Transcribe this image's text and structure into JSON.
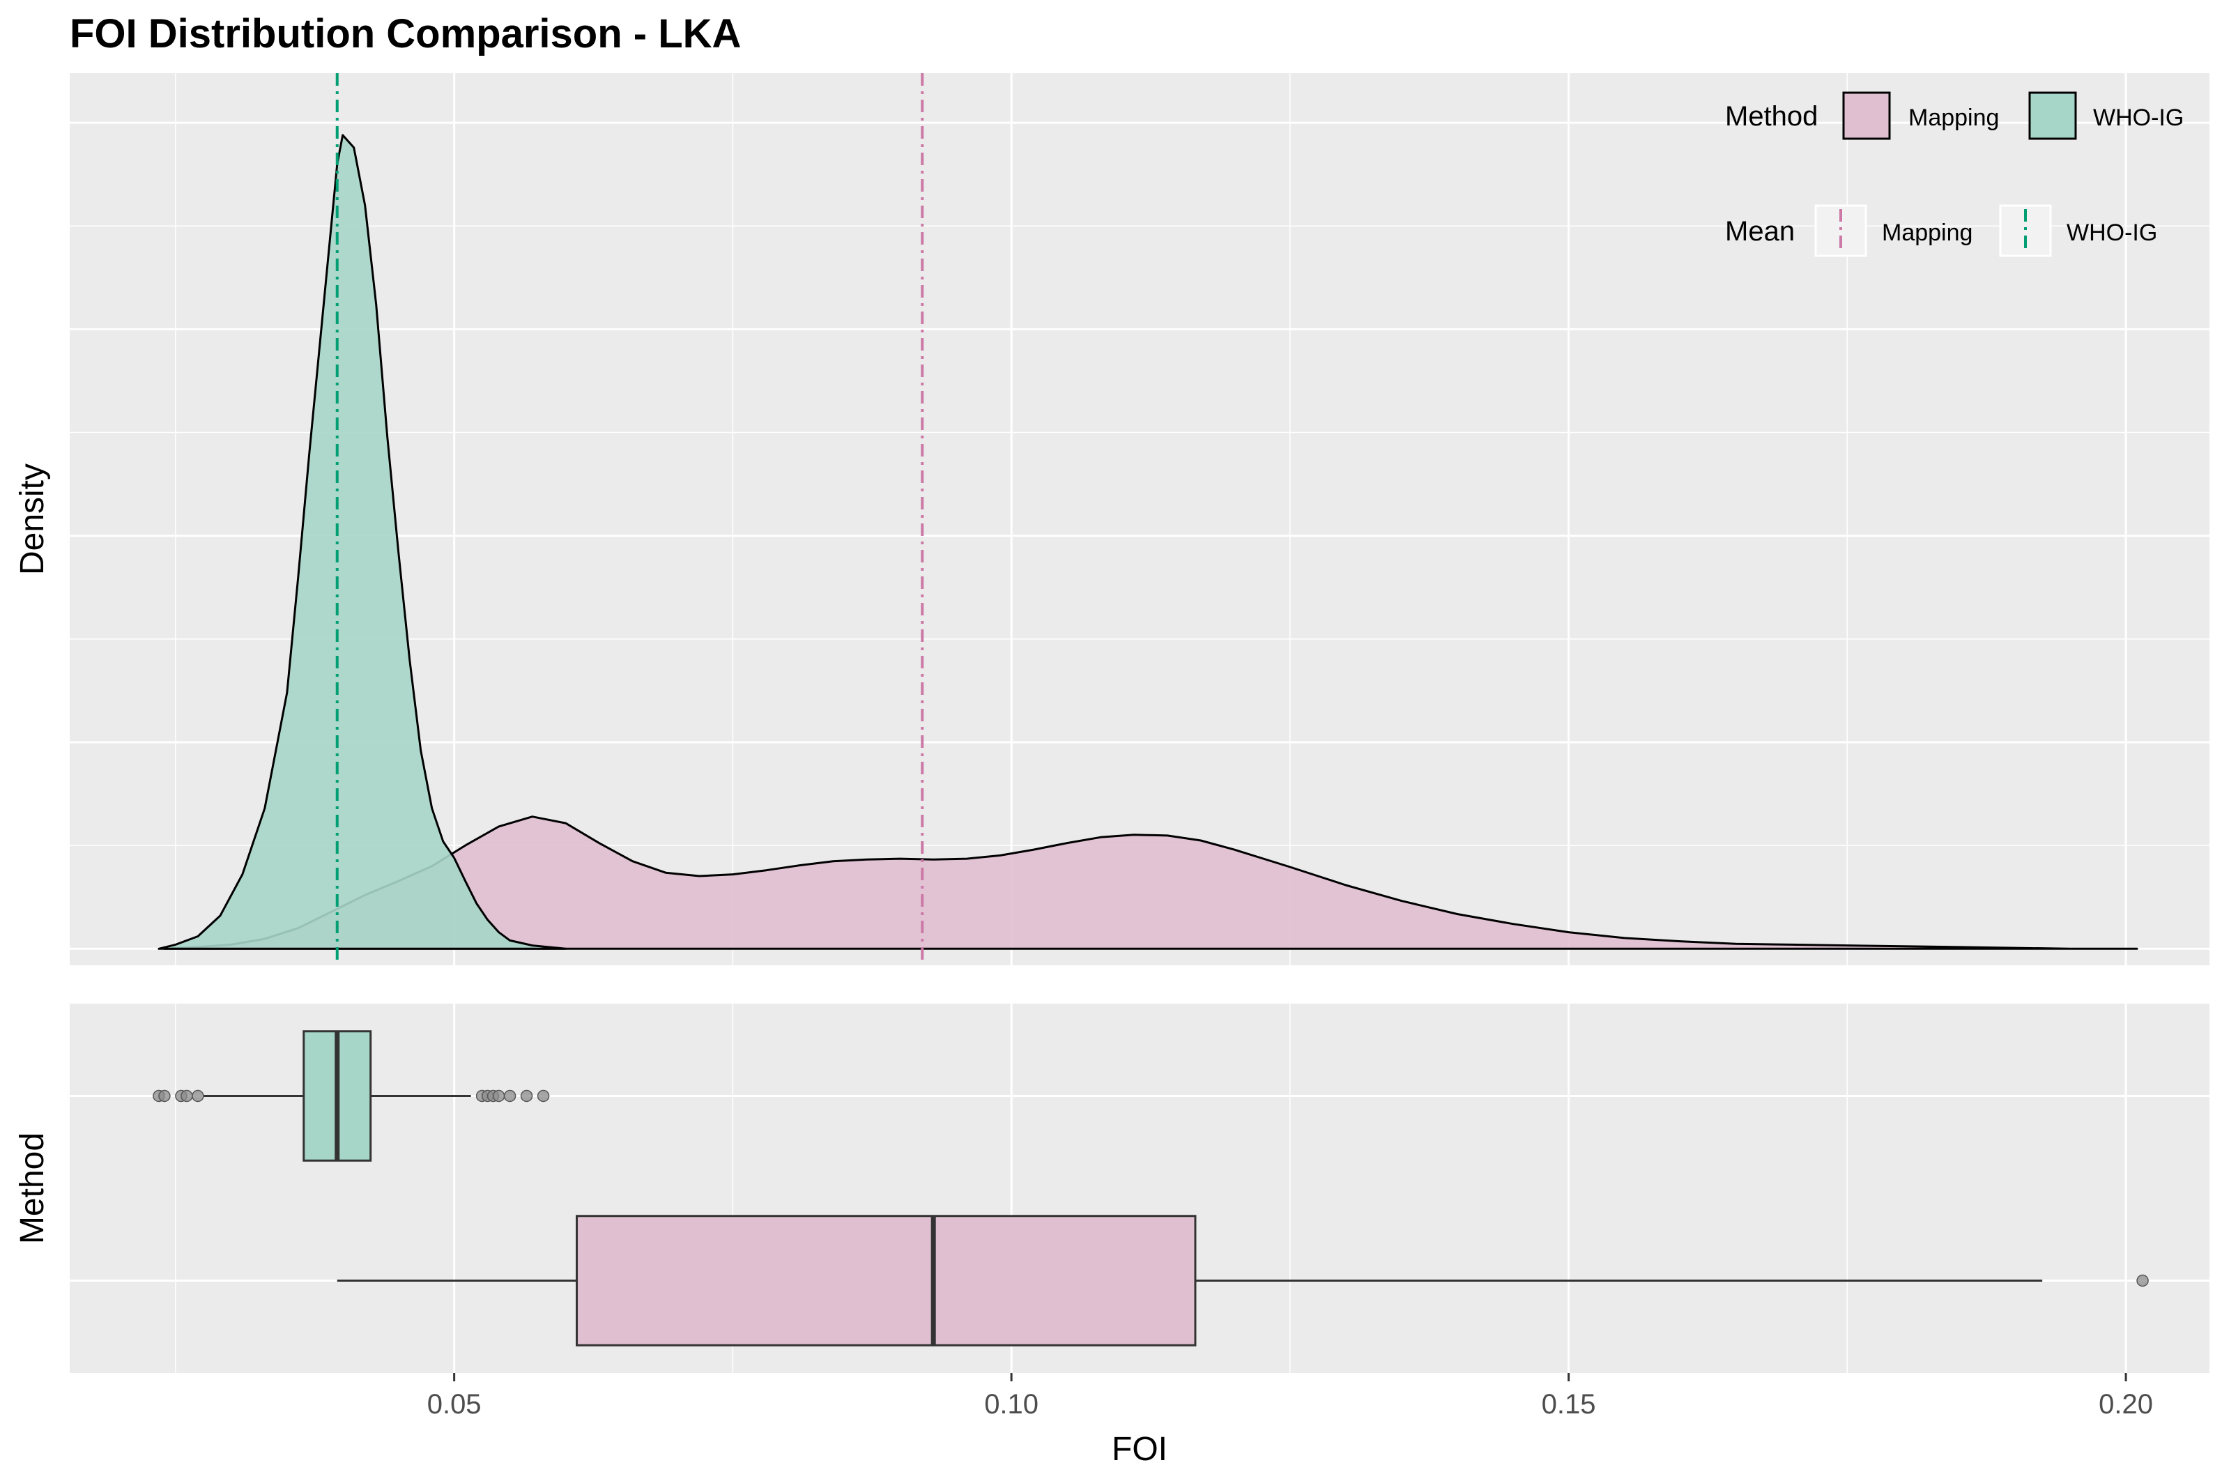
{
  "chart_data": {
    "title": "FOI Distribution Comparison - LKA",
    "type": "density+boxplot",
    "xlabel": "FOI",
    "xlim": [
      0.0155,
      0.2075
    ],
    "x_ticks": [
      "0.05",
      "0.10",
      "0.15",
      "0.20"
    ],
    "x_tick_values": [
      0.05,
      0.1,
      0.15,
      0.2
    ],
    "density_panel": {
      "ylabel": "Density",
      "ylim": [
        -0.02,
        1.06
      ],
      "y_ticks_shown": false,
      "series": [
        {
          "name": "Mapping",
          "fill": "#e0bfd0",
          "mean": 0.092,
          "points": [
            [
              0.024,
              0.0
            ],
            [
              0.027,
              0.002
            ],
            [
              0.03,
              0.005
            ],
            [
              0.033,
              0.012
            ],
            [
              0.036,
              0.025
            ],
            [
              0.039,
              0.045
            ],
            [
              0.042,
              0.065
            ],
            [
              0.045,
              0.082
            ],
            [
              0.048,
              0.1
            ],
            [
              0.051,
              0.125
            ],
            [
              0.054,
              0.148
            ],
            [
              0.057,
              0.16
            ],
            [
              0.06,
              0.152
            ],
            [
              0.063,
              0.128
            ],
            [
              0.066,
              0.106
            ],
            [
              0.069,
              0.092
            ],
            [
              0.072,
              0.088
            ],
            [
              0.075,
              0.09
            ],
            [
              0.078,
              0.095
            ],
            [
              0.081,
              0.101
            ],
            [
              0.084,
              0.106
            ],
            [
              0.087,
              0.108
            ],
            [
              0.09,
              0.109
            ],
            [
              0.093,
              0.108
            ],
            [
              0.096,
              0.109
            ],
            [
              0.099,
              0.113
            ],
            [
              0.102,
              0.12
            ],
            [
              0.105,
              0.128
            ],
            [
              0.108,
              0.135
            ],
            [
              0.111,
              0.138
            ],
            [
              0.114,
              0.137
            ],
            [
              0.117,
              0.131
            ],
            [
              0.12,
              0.12
            ],
            [
              0.125,
              0.099
            ],
            [
              0.13,
              0.077
            ],
            [
              0.135,
              0.058
            ],
            [
              0.14,
              0.042
            ],
            [
              0.145,
              0.03
            ],
            [
              0.15,
              0.02
            ],
            [
              0.155,
              0.013
            ],
            [
              0.16,
              0.009
            ],
            [
              0.165,
              0.006
            ],
            [
              0.17,
              0.005
            ],
            [
              0.175,
              0.004
            ],
            [
              0.18,
              0.003
            ],
            [
              0.185,
              0.002
            ],
            [
              0.19,
              0.001
            ],
            [
              0.195,
              0.0
            ],
            [
              0.201,
              0.0
            ]
          ]
        },
        {
          "name": "WHO-IG",
          "fill": "#a6d6c8",
          "mean": 0.0395,
          "points": [
            [
              0.0235,
              0.0
            ],
            [
              0.025,
              0.005
            ],
            [
              0.027,
              0.015
            ],
            [
              0.029,
              0.04
            ],
            [
              0.031,
              0.09
            ],
            [
              0.033,
              0.17
            ],
            [
              0.035,
              0.31
            ],
            [
              0.036,
              0.45
            ],
            [
              0.037,
              0.6
            ],
            [
              0.038,
              0.74
            ],
            [
              0.039,
              0.88
            ],
            [
              0.0395,
              0.95
            ],
            [
              0.04,
              0.985
            ],
            [
              0.041,
              0.97
            ],
            [
              0.042,
              0.9
            ],
            [
              0.043,
              0.78
            ],
            [
              0.044,
              0.62
            ],
            [
              0.045,
              0.48
            ],
            [
              0.046,
              0.35
            ],
            [
              0.047,
              0.24
            ],
            [
              0.048,
              0.17
            ],
            [
              0.049,
              0.13
            ],
            [
              0.05,
              0.11
            ],
            [
              0.051,
              0.082
            ],
            [
              0.052,
              0.055
            ],
            [
              0.053,
              0.035
            ],
            [
              0.054,
              0.02
            ],
            [
              0.055,
              0.01
            ],
            [
              0.057,
              0.004
            ],
            [
              0.06,
              0.0
            ]
          ]
        }
      ]
    },
    "box_panel": {
      "ylabel": "Method",
      "categories": [
        "WHO-IG",
        "Mapping"
      ],
      "series": [
        {
          "name": "WHO-IG",
          "fill": "#a6d6c8",
          "min": 0.0275,
          "q1": 0.0365,
          "median": 0.0395,
          "q3": 0.0425,
          "max": 0.0515,
          "outliers": [
            0.0235,
            0.024,
            0.0255,
            0.026,
            0.027,
            0.0525,
            0.053,
            0.0535,
            0.054,
            0.055,
            0.0565,
            0.058
          ]
        },
        {
          "name": "Mapping",
          "fill": "#e0bfd0",
          "min": 0.0395,
          "q1": 0.061,
          "median": 0.093,
          "q3": 0.1165,
          "max": 0.1925,
          "outliers": [
            0.2015
          ]
        }
      ]
    },
    "legend": {
      "placement": "top-right",
      "method": {
        "title": "Method",
        "items": [
          "Mapping",
          "WHO-IG"
        ]
      },
      "mean": {
        "title": "Mean",
        "items": [
          "Mapping",
          "WHO-IG"
        ]
      }
    },
    "colors": {
      "panel_bg": "#ebebeb",
      "grid": "#ffffff",
      "mapping_line": "#cc79a7",
      "who_line": "#009e73",
      "outlier": "#8c8c8c"
    }
  }
}
